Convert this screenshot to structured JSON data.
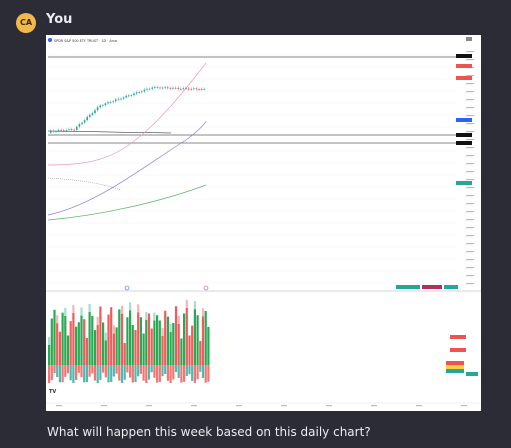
{
  "user": {
    "initials": "CA",
    "name": "You"
  },
  "message": {
    "text": "What will happen this week based on this daily chart?"
  },
  "chart": {
    "header_text": "SPDR S&P 500 ETF TRUST · 1D · Arca",
    "icon": "tradingview-logo-icon",
    "colors": {
      "up": "#26a69a",
      "down": "#ef5350",
      "up_light": "#a7dccf",
      "down_light": "#f4b6b6",
      "ma_fast": "#e69acb",
      "ma_mid": "#8c7be0",
      "ma_slow": "#57b86a",
      "volume_up": "#1fa34a",
      "volume_down": "#f05252"
    }
  }
}
